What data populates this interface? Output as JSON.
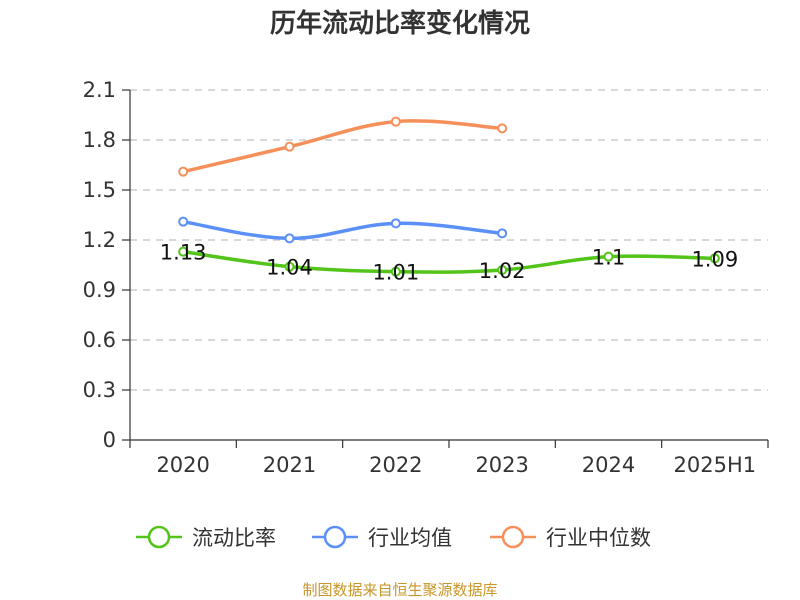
{
  "chart_data": {
    "type": "line",
    "title": "历年流动比率变化情况",
    "categories": [
      "2020",
      "2021",
      "2022",
      "2023",
      "2024",
      "2025H1"
    ],
    "ylim": [
      0,
      2.1
    ],
    "yticks": [
      "0",
      "0.3",
      "0.6",
      "0.9",
      "1.2",
      "1.5",
      "1.8",
      "2.1"
    ],
    "grid": true,
    "legend_position": "bottom",
    "series": [
      {
        "name": "流动比率",
        "color": "#52c41a",
        "values": [
          1.13,
          1.04,
          1.01,
          1.02,
          1.1,
          1.09
        ],
        "labels": [
          "1.13",
          "1.04",
          "1.01",
          "1.02",
          "1.1",
          "1.09"
        ]
      },
      {
        "name": "行业均值",
        "color": "#5b8ff9",
        "values": [
          1.31,
          1.21,
          1.3,
          1.24,
          null,
          null
        ]
      },
      {
        "name": "行业中位数",
        "color": "#f6905a",
        "values": [
          1.61,
          1.76,
          1.91,
          1.87,
          null,
          null
        ]
      }
    ]
  },
  "source_note": "制图数据来自恒生聚源数据库",
  "source_color": "#c8962a"
}
